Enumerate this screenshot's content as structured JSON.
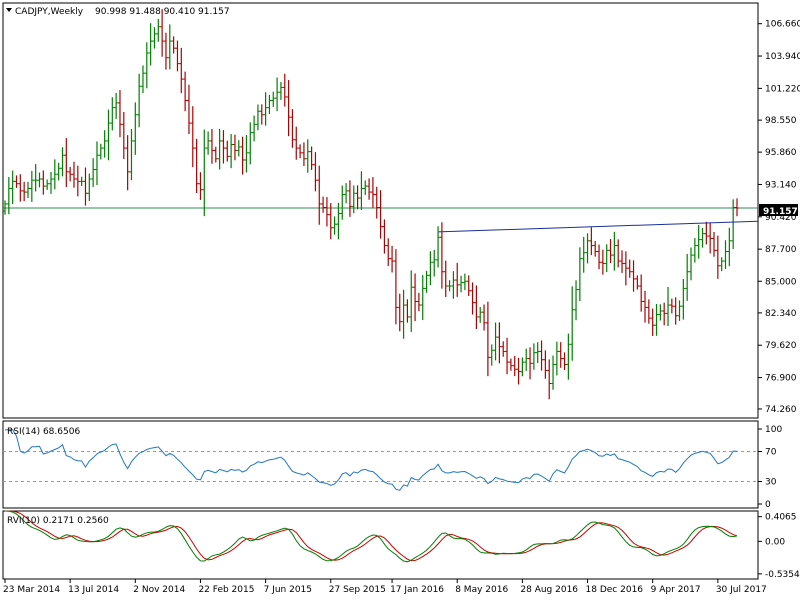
{
  "header": {
    "symbol_label": "CADJPY,Weekly",
    "ohlc_text": "90.998 91.488 90.410 91.157"
  },
  "colors": {
    "background": "#ffffff",
    "bull": "#008000",
    "bear": "#b00000",
    "support": "#2e8b57",
    "trendline": "#1b2f96",
    "rsi_line": "#1f77c8",
    "rvi_main": "#008000",
    "rvi_signal": "#d00000",
    "price_box": "#000000",
    "level_dashed": "#9a9a9a"
  },
  "chart_data": [
    {
      "type": "candlestick",
      "name": "price",
      "title": "CADJPY,Weekly",
      "ohlc_last": {
        "open": 90.998,
        "high": 91.488,
        "low": 90.41,
        "close": 91.157
      },
      "current_price_label": "91.157",
      "ylim": [
        73.5,
        108.4
      ],
      "y_ticks": [
        106.66,
        103.94,
        101.22,
        98.55,
        95.86,
        93.14,
        90.42,
        87.7,
        85.0,
        82.34,
        79.62,
        76.9,
        74.26
      ],
      "y_tick_labels": [
        "106.660",
        "103.940",
        "101.220",
        "98.550",
        "95.860",
        "93.140",
        "90.420",
        "87.700",
        "85.000",
        "82.340",
        "79.620",
        "76.900",
        "74.260"
      ],
      "x_tick_labels": [
        "23 Mar 2014",
        "13 Jul 2014",
        "2 Nov 2014",
        "22 Feb 2015",
        "7 Jun 2015",
        "27 Sep 2015",
        "17 Jan 2016",
        "8 May 2016",
        "28 Aug 2016",
        "18 Dec 2016",
        "9 Apr 2017",
        "30 Jul 2017"
      ],
      "bar_count": 186,
      "horizontal_line": {
        "y": 91.157
      },
      "trendline": {
        "from": {
          "bar": 113,
          "y": 89.15
        },
        "to": {
          "bar": 186,
          "y": 90.05
        }
      },
      "closes": [
        91.5,
        92.8,
        93.4,
        93.2,
        92.6,
        92.5,
        92.8,
        93.5,
        93.5,
        93.6,
        93.0,
        93.2,
        93.6,
        94.0,
        94.5,
        95.6,
        94.2,
        94.0,
        93.6,
        93.4,
        93.4,
        92.4,
        93.6,
        94.4,
        95.6,
        96.2,
        96.8,
        98.3,
        99.6,
        100.0,
        98.2,
        96.2,
        94.2,
        96.8,
        99.0,
        101.4,
        102.5,
        104.2,
        105.2,
        105.8,
        106.4,
        105.2,
        103.8,
        105.2,
        104.6,
        103.3,
        102.0,
        100.2,
        98.3,
        96.2,
        93.2,
        92.7,
        96.2,
        96.8,
        96.0,
        95.3,
        96.8,
        96.2,
        95.5,
        96.5,
        96.0,
        96.3,
        95.2,
        95.8,
        97.5,
        98.2,
        99.3,
        99.0,
        99.6,
        100.2,
        100.4,
        100.9,
        101.3,
        100.5,
        98.8,
        96.9,
        96.2,
        95.8,
        95.3,
        95.9,
        94.8,
        93.5,
        91.5,
        91.2,
        90.6,
        89.5,
        89.8,
        90.7,
        92.3,
        92.6,
        91.3,
        92.4,
        92.0,
        92.8,
        93.0,
        92.5,
        92.3,
        91.2,
        89.6,
        88.0,
        86.9,
        86.7,
        82.8,
        81.6,
        83.0,
        82.0,
        84.5,
        83.3,
        83.0,
        84.4,
        85.5,
        86.6,
        86.8,
        88.7,
        85.8,
        84.6,
        84.6,
        85.1,
        84.7,
        84.9,
        85.0,
        84.2,
        83.2,
        82.0,
        82.4,
        81.5,
        78.6,
        79.2,
        80.3,
        79.5,
        79.1,
        78.2,
        77.9,
        77.6,
        77.4,
        78.2,
        78.5,
        78.1,
        79.0,
        79.1,
        78.4,
        77.5,
        76.4,
        78.0,
        79.1,
        78.5,
        78.0,
        79.7,
        82.6,
        84.3,
        86.9,
        87.4,
        88.4,
        88.0,
        87.5,
        86.6,
        86.5,
        87.6,
        87.2,
        88.0,
        86.7,
        86.5,
        86.1,
        85.8,
        85.2,
        84.6,
        83.3,
        82.8,
        81.9,
        81.3,
        82.2,
        82.5,
        82.3,
        83.0,
        82.9,
        82.1,
        82.9,
        84.4,
        85.8,
        87.2,
        88.0,
        88.5,
        89.0,
        88.8,
        88.6,
        87.6,
        86.3,
        86.7,
        87.5,
        88.4,
        91.2,
        91.157
      ],
      "subcharts": [
        "RSI(14)",
        "RVI(10)"
      ]
    },
    {
      "type": "line",
      "name": "rsi",
      "label": "RSI(14) 68.6506",
      "ylim": [
        0,
        100
      ],
      "y_ticks": [
        100,
        70,
        30,
        0
      ],
      "y_tick_labels": [
        "100",
        "70",
        "30",
        "0"
      ],
      "levels": [
        70,
        30
      ],
      "last_value": 68.6506
    },
    {
      "type": "line",
      "name": "rvi",
      "label": "RVI(10) 0.2171 0.2560",
      "ylim": [
        -0.62,
        0.5
      ],
      "y_ticks": [
        0.4065,
        0.0,
        -0.5354
      ],
      "y_tick_labels": [
        "0.4065",
        "0.00",
        "-0.5354"
      ],
      "series": [
        {
          "name": "main",
          "last_value": 0.2171
        },
        {
          "name": "signal",
          "last_value": 0.256
        }
      ]
    }
  ]
}
